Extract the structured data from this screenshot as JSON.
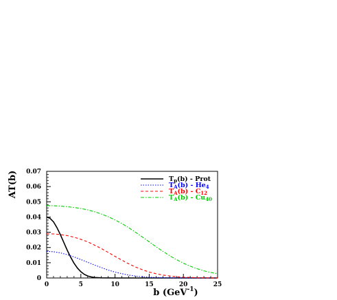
{
  "chart_data": {
    "type": "line",
    "title": "",
    "xlabel": "b (GeV",
    "xlabel_sup": "-1",
    "xlabel_close": ")",
    "ylabel": "AT(b)",
    "xlim": [
      0,
      25
    ],
    "ylim": [
      0,
      0.07
    ],
    "x_ticks": [
      0,
      5,
      10,
      15,
      20,
      25
    ],
    "x_tick_labels": [
      "0",
      "5",
      "10",
      "15",
      "20",
      "25"
    ],
    "y_ticks": [
      0,
      0.01,
      0.02,
      0.03,
      0.04,
      0.05,
      0.06,
      0.07
    ],
    "y_tick_labels": [
      "0",
      "0.01",
      "0.02",
      "0.03",
      "0.04",
      "0.05",
      "0.06",
      "0.07"
    ],
    "grid": false,
    "legend_position": "top-right",
    "series": [
      {
        "name": "Tp(b) - Prot",
        "label_main": "T",
        "label_sub": "p",
        "label_mid": "(b) - Prot",
        "label_sub2": "",
        "color": "#000000",
        "dash": "",
        "x": [
          0,
          0.5,
          1,
          1.5,
          2,
          2.5,
          3,
          3.5,
          4,
          4.5,
          5,
          5.5,
          6,
          6.5,
          7,
          8,
          10,
          15,
          20,
          25
        ],
        "y": [
          0.04,
          0.0391,
          0.0368,
          0.0331,
          0.0285,
          0.0234,
          0.0183,
          0.0137,
          0.0097,
          0.0065,
          0.0041,
          0.0024,
          0.0013,
          0.0007,
          0.0003,
          0.0001,
          0,
          0,
          0,
          0
        ]
      },
      {
        "name": "TA(b) - He4",
        "label_main": "T",
        "label_sub": "A",
        "label_mid": "(b) - He",
        "label_sub2": "4",
        "color": "#0000ff",
        "dash": "1.5,2",
        "x": [
          0,
          1,
          2,
          3,
          4,
          5,
          6,
          7,
          8,
          9,
          10,
          11,
          12,
          13,
          14,
          15,
          17,
          20,
          25
        ],
        "y": [
          0.0175,
          0.0172,
          0.0165,
          0.0153,
          0.0138,
          0.0121,
          0.0103,
          0.0085,
          0.0068,
          0.0052,
          0.0039,
          0.0028,
          0.0019,
          0.0012,
          0.0008,
          0.0005,
          0.0002,
          0,
          0
        ]
      },
      {
        "name": "TA(b) - C12",
        "label_main": "T",
        "label_sub": "A",
        "label_mid": "(b) - C",
        "label_sub2": "12",
        "color": "#ff0000",
        "dash": "4,3",
        "x": [
          0,
          1,
          2,
          3,
          4,
          5,
          6,
          7,
          8,
          9,
          10,
          11,
          12,
          13,
          14,
          15,
          16,
          17,
          18,
          19,
          20,
          22,
          25
        ],
        "y": [
          0.029,
          0.0289,
          0.0285,
          0.0278,
          0.0268,
          0.0254,
          0.0237,
          0.0216,
          0.0193,
          0.0168,
          0.0142,
          0.0117,
          0.0093,
          0.0072,
          0.0054,
          0.0039,
          0.0028,
          0.0019,
          0.0013,
          0.0008,
          0.0005,
          0.0002,
          0
        ]
      },
      {
        "name": "TA(b) - Cu40",
        "label_main": "T",
        "label_sub": "A",
        "label_mid": "(b) - Cu",
        "label_sub2": "40",
        "color": "#00cc00",
        "dash": "5,2,1.5,2",
        "x": [
          0,
          1,
          2,
          3,
          4,
          5,
          6,
          7,
          8,
          9,
          10,
          11,
          12,
          13,
          14,
          15,
          16,
          17,
          18,
          19,
          20,
          21,
          22,
          23,
          24,
          25
        ],
        "y": [
          0.0475,
          0.0474,
          0.0472,
          0.0468,
          0.0463,
          0.0456,
          0.0447,
          0.0435,
          0.042,
          0.0402,
          0.0381,
          0.0357,
          0.033,
          0.03,
          0.0269,
          0.0237,
          0.0205,
          0.0175,
          0.0146,
          0.012,
          0.0097,
          0.0077,
          0.0061,
          0.0047,
          0.0036,
          0.0028
        ]
      }
    ]
  }
}
